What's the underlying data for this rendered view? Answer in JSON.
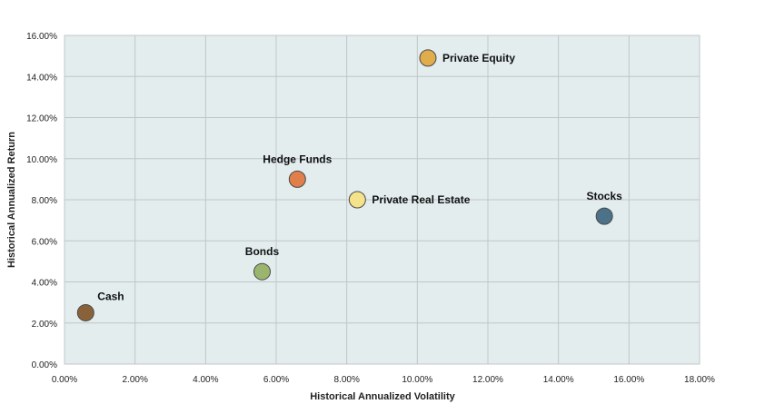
{
  "chart_data": {
    "type": "scatter",
    "title": "",
    "xlabel": "Historical Annualized Volatility",
    "ylabel": "Historical Annualized Return",
    "xlim": [
      0,
      18
    ],
    "ylim": [
      0,
      16
    ],
    "x_ticks": [
      "0.00%",
      "2.00%",
      "4.00%",
      "6.00%",
      "8.00%",
      "10.00%",
      "12.00%",
      "14.00%",
      "16.00%",
      "18.00%"
    ],
    "y_ticks": [
      "0.00%",
      "2.00%",
      "4.00%",
      "6.00%",
      "8.00%",
      "10.00%",
      "12.00%",
      "14.00%",
      "16.00%"
    ],
    "grid": true,
    "plot_background": "#e3edee",
    "grid_color": "#c0c6c8",
    "points": [
      {
        "label": "Cash",
        "x": 0.6,
        "y": 2.5,
        "color": "#8a6239",
        "label_pos": "above-right"
      },
      {
        "label": "Bonds",
        "x": 5.6,
        "y": 4.5,
        "color": "#9bb56f",
        "label_pos": "above"
      },
      {
        "label": "Hedge Funds",
        "x": 6.6,
        "y": 9.0,
        "color": "#e07e4c",
        "label_pos": "above"
      },
      {
        "label": "Private Real Estate",
        "x": 8.3,
        "y": 8.0,
        "color": "#f5e38b",
        "label_pos": "right"
      },
      {
        "label": "Private Equity",
        "x": 10.3,
        "y": 14.9,
        "color": "#e0ac4c",
        "label_pos": "right"
      },
      {
        "label": "Stocks",
        "x": 15.3,
        "y": 7.2,
        "color": "#4b7288",
        "label_pos": "above"
      }
    ]
  }
}
